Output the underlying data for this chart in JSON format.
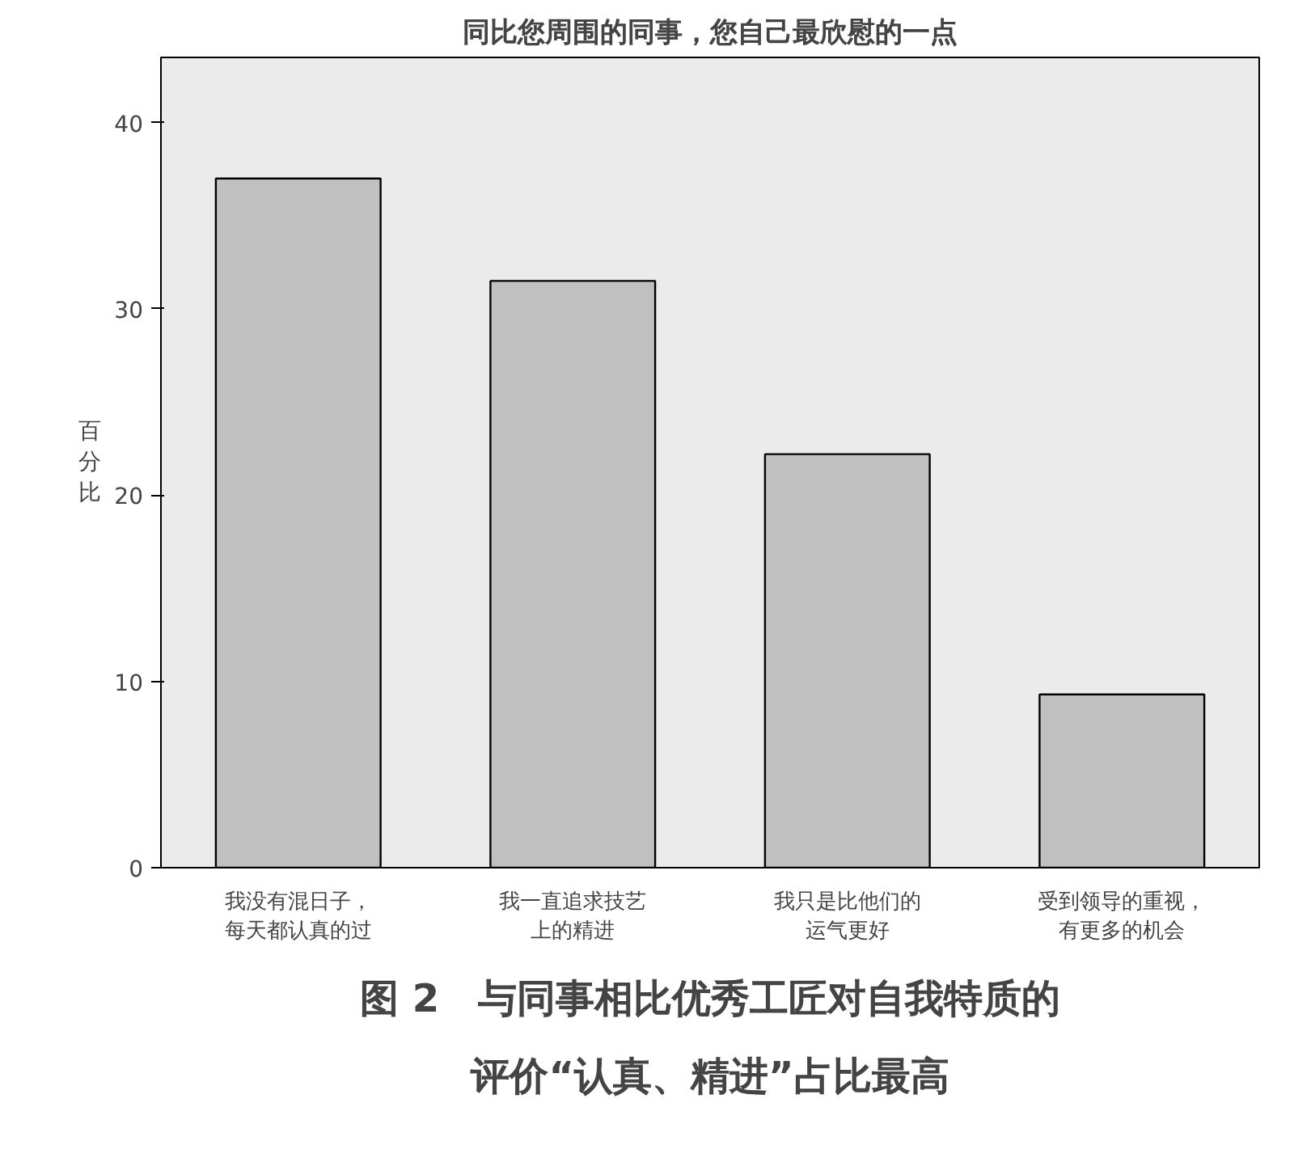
{
  "chart_data": {
    "type": "bar",
    "title": "同比您周围的同事，您自己最欣慰的一点",
    "ylabel": "百分比",
    "categories": [
      "我没有混日子，每天都认真的过",
      "我一直追求技艺上的精进",
      "我只是比他们的运气更好",
      "受到领导的重视，有更多的机会"
    ],
    "values": [
      37.0,
      31.5,
      22.2,
      9.3
    ],
    "color": "#c0c0c0",
    "ylim": [
      0,
      43.5
    ],
    "yticks": [
      0,
      10,
      20,
      30,
      40
    ],
    "grid": false,
    "annotations": [
      "图 2　与同事相比优秀工匠对自我特质的",
      "评价“认真、精进”占比最高"
    ]
  }
}
